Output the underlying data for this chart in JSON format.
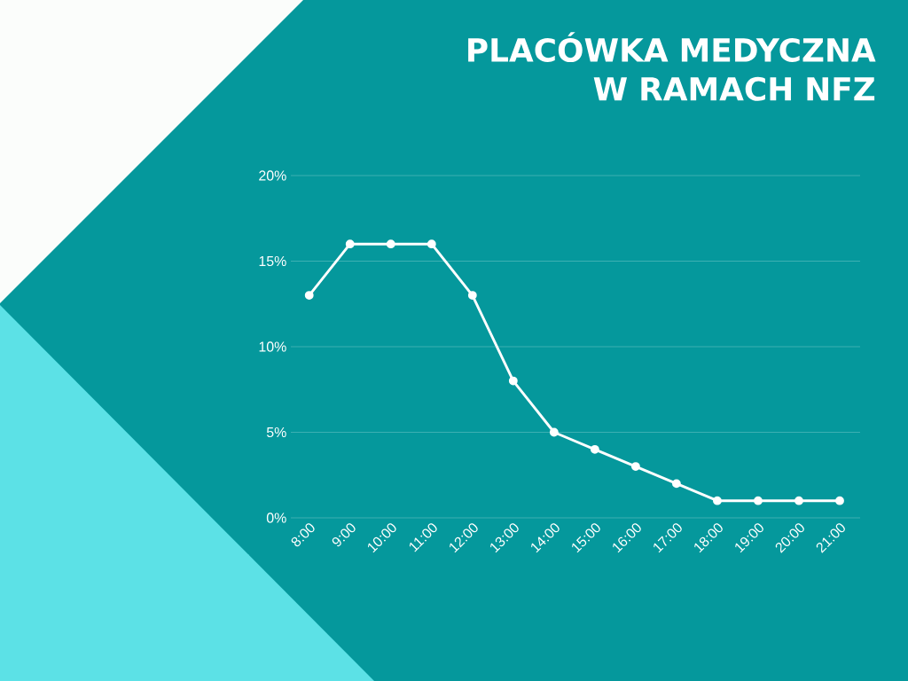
{
  "chart_data": {
    "type": "line",
    "title": "PLACÓWKA MEDYCZNA W RAMACH NFZ",
    "categories": [
      "8:00",
      "9:00",
      "10:00",
      "11:00",
      "12:00",
      "13:00",
      "14:00",
      "15:00",
      "16:00",
      "17:00",
      "18:00",
      "19:00",
      "20:00",
      "21:00"
    ],
    "series": [
      {
        "color": "#ffffff",
        "values": [
          13,
          16,
          16,
          16,
          13,
          8,
          5,
          4,
          3,
          2,
          1,
          1,
          1,
          1
        ]
      }
    ],
    "ylim": [
      0,
      20
    ],
    "yticks": [
      {
        "value": 0,
        "label": "0%"
      },
      {
        "value": 5,
        "label": "5%"
      },
      {
        "value": 10,
        "label": "10%"
      },
      {
        "value": 15,
        "label": "15%"
      },
      {
        "value": 20,
        "label": "20%"
      }
    ],
    "grid": "y",
    "marker": "circle",
    "line_style": "solid"
  }
}
